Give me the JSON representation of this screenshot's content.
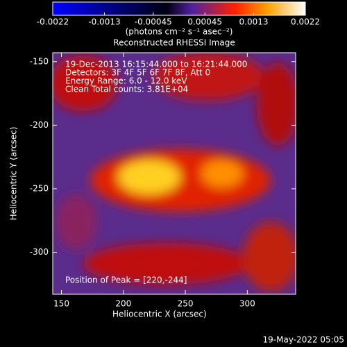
{
  "chart_data": {
    "type": "image",
    "title": "Reconstructed RHESSI Image",
    "x_label": "Heliocentric X (arcsec)",
    "y_label": "Heliocentric Y (arcsec)",
    "xlim": [
      143,
      339
    ],
    "xticks": [
      150,
      200,
      250,
      300
    ],
    "ylim": [
      -333,
      -143
    ],
    "yticks": [
      -150,
      -200,
      -250,
      -300
    ],
    "colorbar_lim": [
      -0.0022,
      0.0022
    ],
    "colorbar_ticks": [
      -0.0022,
      -0.0013,
      -0.00045,
      0.00045,
      0.0013,
      0.0022
    ],
    "colorbar_label": "(photons cm⁻² s⁻¹ asec⁻²)",
    "annotations": [
      "19-Dec-2013 16:15:44.000 to 16:21:44.000",
      "Detectors: 3F 4F 5F 6F 7F 8F, Att 0",
      "Energy Range: 6.0 - 12.0 keV",
      "Clean    Total counts: 3.81E+04"
    ],
    "peak_note": "Position of Peak = [220,-244]",
    "footer": "19-May-2022 05:05"
  }
}
